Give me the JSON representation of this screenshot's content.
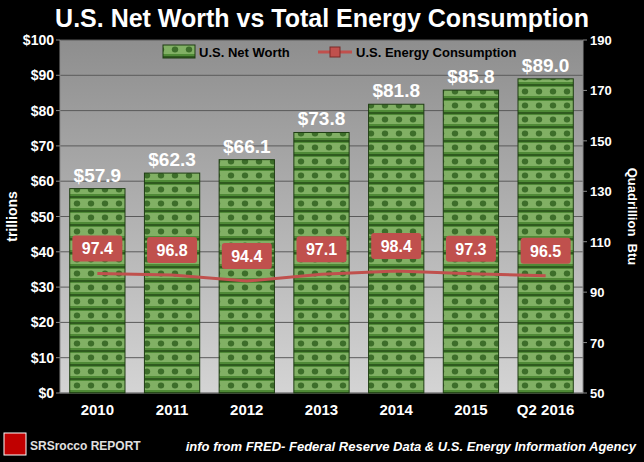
{
  "chart_data": {
    "type": "bar",
    "title": "U.S. Net Worth vs Total Energy Consumption",
    "y_label": "trillions",
    "y2_label": "Quadrillion  Btu",
    "source": "info from FRED- Federal Reserve Data & U.S. Energy Information Agency",
    "logo": "SRSrocco REPORT",
    "categories": [
      "2010",
      "2011",
      "2012",
      "2013",
      "2014",
      "2015",
      "Q2 2016"
    ],
    "series": [
      {
        "name": "U.S. Net Worth",
        "type": "bar",
        "color": "#4f8a36",
        "values": [
          57.9,
          62.3,
          66.1,
          73.8,
          81.8,
          85.8,
          89.0
        ],
        "value_labels": [
          "$57.9",
          "$62.3",
          "$66.1",
          "$73.8",
          "$81.8",
          "$85.8",
          "$89.0"
        ]
      },
      {
        "name": "U.S. Energy Consumption",
        "type": "line",
        "axis": "y2",
        "color": "#c0504d",
        "marker": "square",
        "values": [
          97.4,
          96.8,
          94.4,
          97.1,
          98.4,
          97.3,
          96.5
        ]
      }
    ],
    "ylim": [
      0,
      100
    ],
    "yticks": [
      {
        "value": 0,
        "label": "$0"
      },
      {
        "value": 10,
        "label": "$10"
      },
      {
        "value": 20,
        "label": "$20"
      },
      {
        "value": 30,
        "label": "$30"
      },
      {
        "value": 40,
        "label": "$40"
      },
      {
        "value": 50,
        "label": "$50"
      },
      {
        "value": 60,
        "label": "$60"
      },
      {
        "value": 70,
        "label": "$70"
      },
      {
        "value": 80,
        "label": "$80"
      },
      {
        "value": 90,
        "label": "$90"
      },
      {
        "value": 100,
        "label": "$100"
      }
    ],
    "y2lim": [
      50,
      190
    ],
    "y2ticks": [
      50,
      70,
      90,
      110,
      130,
      150,
      170,
      190
    ],
    "grid": true,
    "legend": "top",
    "data_labels": true
  }
}
